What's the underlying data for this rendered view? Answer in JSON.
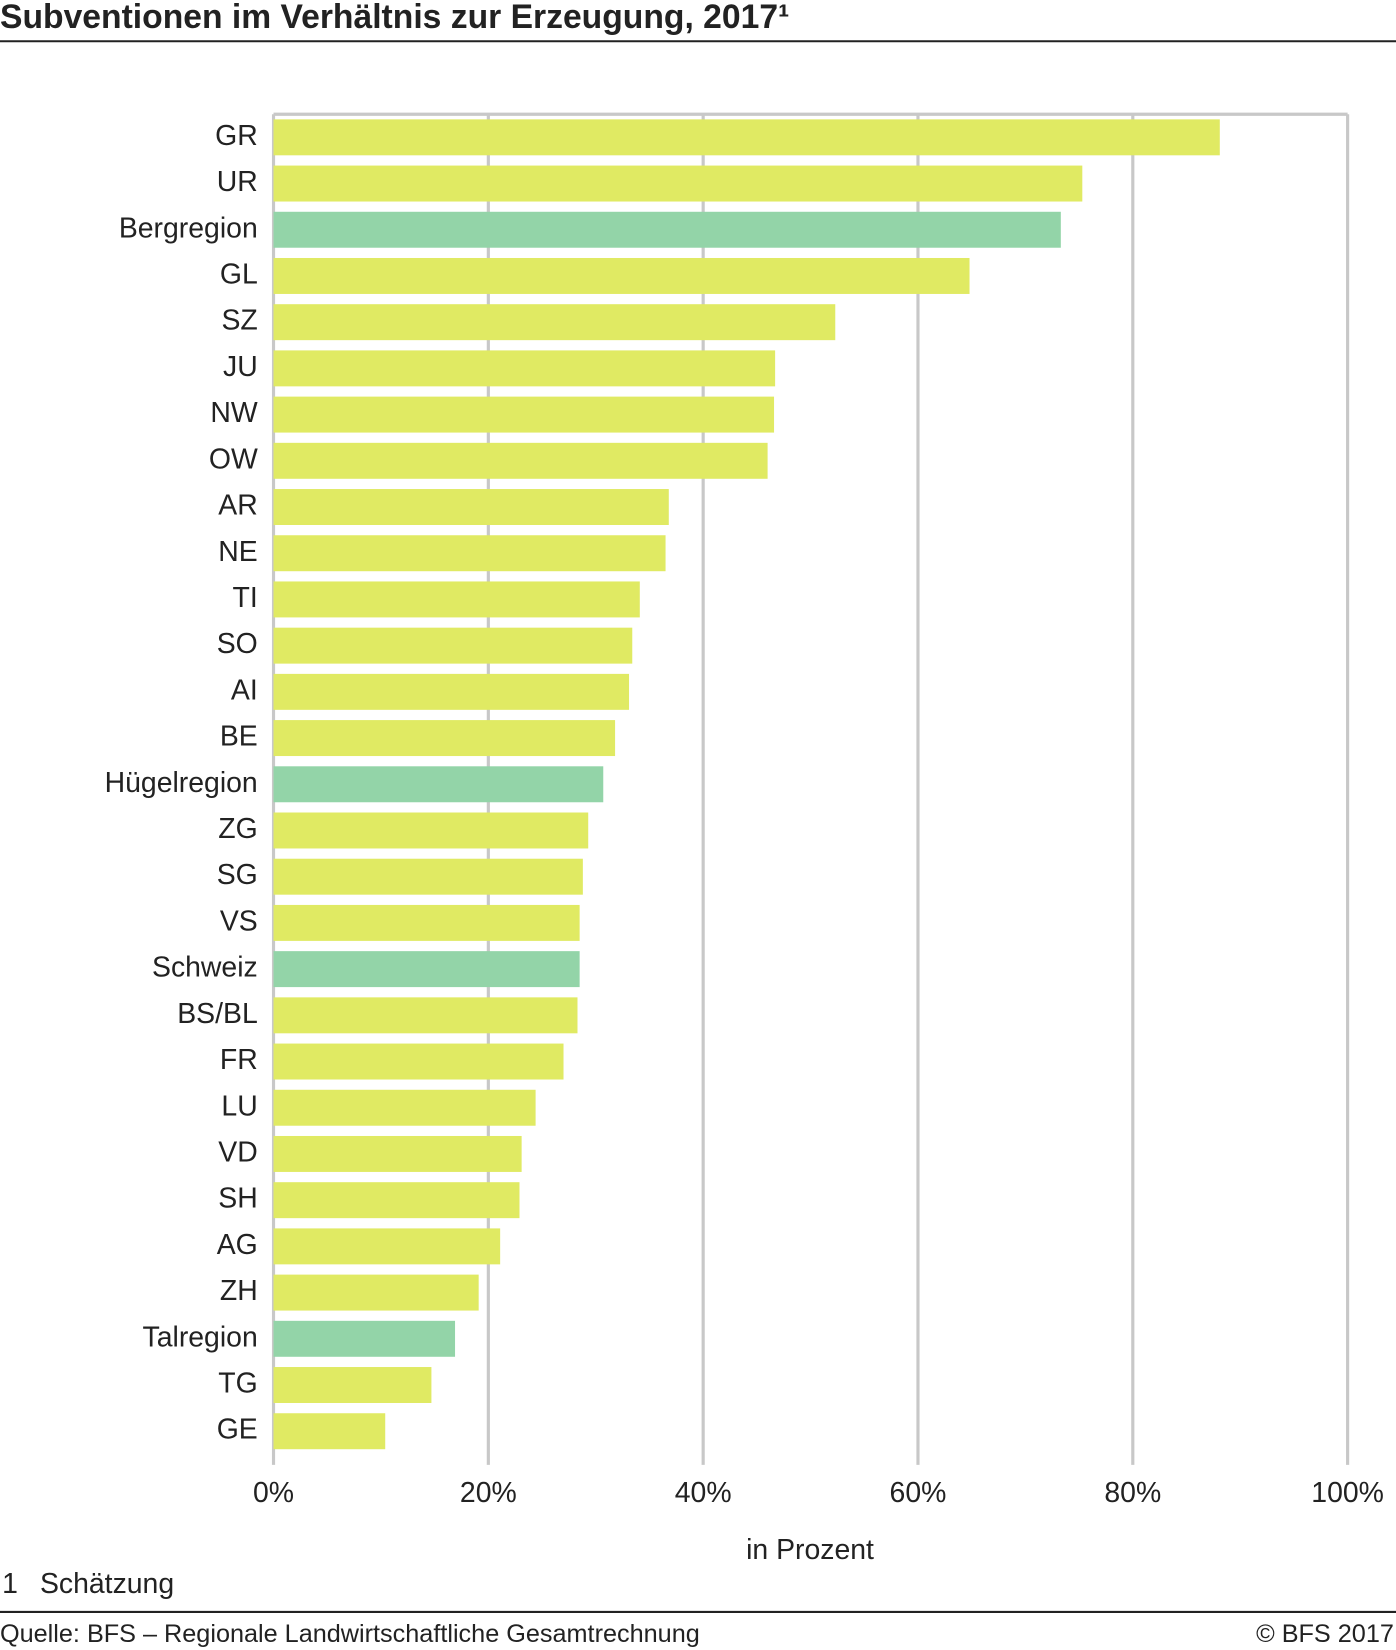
{
  "chart_data": {
    "type": "bar",
    "orientation": "horizontal",
    "title": "Subventionen im Verhältnis zur Erzeugung, 2017¹",
    "x_label": "in Prozent",
    "footnote_marker": "1",
    "footnote": "Schätzung",
    "source": "Quelle: BFS – Regionale Landwirtschaftliche Gesamtrechnung",
    "copyright": "© BFS  2017",
    "categories": [
      "GR",
      "UR",
      "Bergregion",
      "GL",
      "SZ",
      "JU",
      "NW",
      "OW",
      "AR",
      "NE",
      "TI",
      "SO",
      "AI",
      "BE",
      "Hügelregion",
      "ZG",
      "SG",
      "VS",
      "Schweiz",
      "BS/BL",
      "FR",
      "LU",
      "VD",
      "SH",
      "AG",
      "ZH",
      "Talregion",
      "TG",
      "GE"
    ],
    "values": [
      88.1,
      75.3,
      73.3,
      64.8,
      52.3,
      46.7,
      46.6,
      46.0,
      36.8,
      36.5,
      34.1,
      33.4,
      33.1,
      31.8,
      30.7,
      29.3,
      28.8,
      28.5,
      28.5,
      28.3,
      27.0,
      24.4,
      23.1,
      22.9,
      21.1,
      19.1,
      16.9,
      14.7,
      10.4
    ],
    "colors": [
      "#e0ea63",
      "#e0ea63",
      "#93d4a8",
      "#e0ea63",
      "#e0ea63",
      "#e0ea63",
      "#e0ea63",
      "#e0ea63",
      "#e0ea63",
      "#e0ea63",
      "#e0ea63",
      "#e0ea63",
      "#e0ea63",
      "#e0ea63",
      "#93d4a8",
      "#e0ea63",
      "#e0ea63",
      "#e0ea63",
      "#93d4a8",
      "#e0ea63",
      "#e0ea63",
      "#e0ea63",
      "#e0ea63",
      "#e0ea63",
      "#e0ea63",
      "#e0ea63",
      "#93d4a8",
      "#e0ea63",
      "#e0ea63"
    ],
    "xlim": [
      0,
      100
    ],
    "xticks": [
      {
        "value": 0,
        "label": "0%"
      },
      {
        "value": 20,
        "label": "20%"
      },
      {
        "value": 40,
        "label": "40%"
      },
      {
        "value": 60,
        "label": "60%"
      },
      {
        "value": 80,
        "label": "80%"
      },
      {
        "value": 100,
        "label": "100%"
      }
    ],
    "grid": true
  }
}
